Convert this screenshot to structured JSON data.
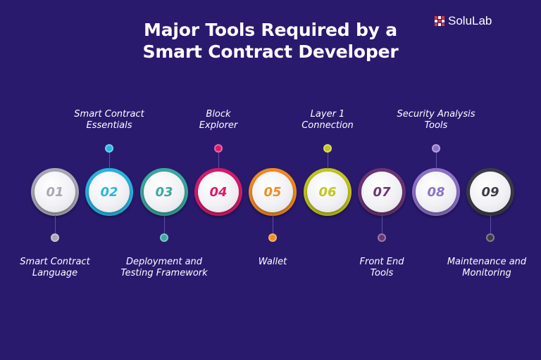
{
  "title": {
    "line1": "Major Tools Required by a",
    "line2": "Smart Contract Developer"
  },
  "brand": {
    "name": "SoluLab",
    "icon": "solulab-logo-icon",
    "color": "#e53935"
  },
  "steps": [
    {
      "number": "01",
      "label_line1": "Smart Contract",
      "label_line2": "Language",
      "position": "bottom",
      "color": "#a9a9b5"
    },
    {
      "number": "02",
      "label_line1": "Smart Contract",
      "label_line2": "Essentials",
      "position": "top",
      "color": "#27b6e0"
    },
    {
      "number": "03",
      "label_line1": "Deployment and",
      "label_line2": "Testing Framework",
      "position": "bottom",
      "color": "#3aa9a0"
    },
    {
      "number": "04",
      "label_line1": "Block",
      "label_line2": "Explorer",
      "position": "top",
      "color": "#d81b6a"
    },
    {
      "number": "05",
      "label_line1": "Wallet",
      "label_line2": "",
      "position": "bottom",
      "color": "#f28c1f"
    },
    {
      "number": "06",
      "label_line1": "Layer 1",
      "label_line2": "Connection",
      "position": "top",
      "color": "#c3c71c"
    },
    {
      "number": "07",
      "label_line1": "Front End",
      "label_line2": "Tools",
      "position": "bottom",
      "color": "#6b3574"
    },
    {
      "number": "08",
      "label_line1": "Security Analysis",
      "label_line2": "Tools",
      "position": "top",
      "color": "#8d72c8"
    },
    {
      "number": "09",
      "label_line1": "Maintenance and",
      "label_line2": "Monitoring",
      "position": "bottom",
      "color": "#3c3c48"
    }
  ]
}
